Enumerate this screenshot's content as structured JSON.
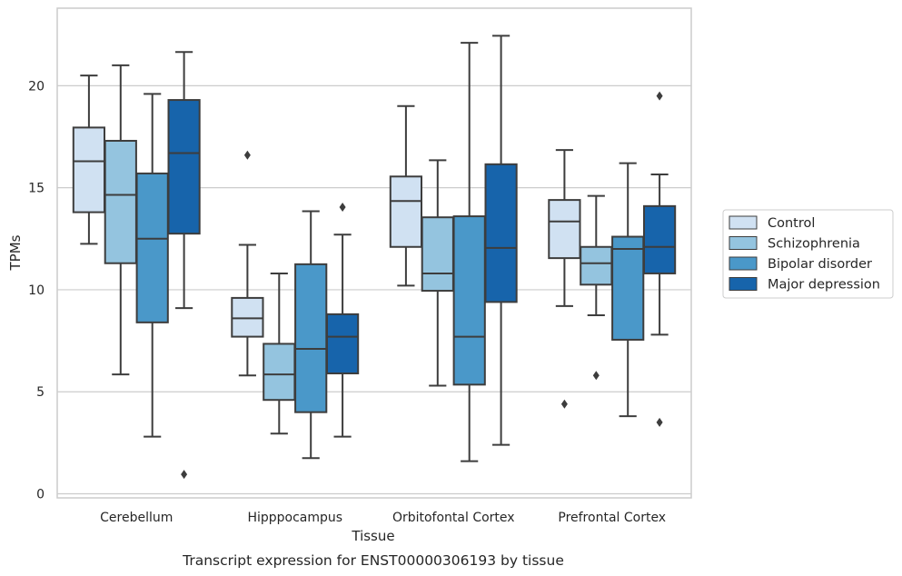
{
  "chart_data": {
    "type": "boxplot",
    "title": "",
    "caption": "Transcript expression for ENST00000306193 by tissue",
    "xlabel": "Tissue",
    "ylabel": "TPMs",
    "ylim": [
      -0.2,
      23.8
    ],
    "yticks": [
      0,
      5,
      10,
      15,
      20
    ],
    "grid": "horizontal",
    "legend_position": "right",
    "categories": [
      "Cerebellum",
      "Hipppocampus",
      "Orbitofontal Cortex",
      "Prefrontal Cortex"
    ],
    "series": [
      {
        "name": "Control",
        "color": "#d0e1f2",
        "boxes": [
          {
            "whisker_low": 12.25,
            "q1": 13.8,
            "median": 16.3,
            "q3": 17.95,
            "whisker_high": 20.5,
            "outliers": []
          },
          {
            "whisker_low": 5.8,
            "q1": 7.7,
            "median": 8.6,
            "q3": 9.6,
            "whisker_high": 12.2,
            "outliers": [
              16.6
            ]
          },
          {
            "whisker_low": 10.2,
            "q1": 12.1,
            "median": 14.35,
            "q3": 15.55,
            "whisker_high": 19.0,
            "outliers": []
          },
          {
            "whisker_low": 9.2,
            "q1": 11.55,
            "median": 13.35,
            "q3": 14.4,
            "whisker_high": 16.85,
            "outliers": [
              4.4
            ]
          }
        ]
      },
      {
        "name": "Schizophrenia",
        "color": "#94c4df",
        "boxes": [
          {
            "whisker_low": 5.85,
            "q1": 11.3,
            "median": 14.65,
            "q3": 17.3,
            "whisker_high": 21.0,
            "outliers": []
          },
          {
            "whisker_low": 2.95,
            "q1": 4.6,
            "median": 5.85,
            "q3": 7.35,
            "whisker_high": 10.8,
            "outliers": []
          },
          {
            "whisker_low": 5.3,
            "q1": 9.95,
            "median": 10.8,
            "q3": 13.55,
            "whisker_high": 16.35,
            "outliers": []
          },
          {
            "whisker_low": 8.75,
            "q1": 10.25,
            "median": 11.3,
            "q3": 12.1,
            "whisker_high": 14.6,
            "outliers": [
              5.8
            ]
          }
        ]
      },
      {
        "name": "Bipolar disorder",
        "color": "#4a98c9",
        "boxes": [
          {
            "whisker_low": 2.8,
            "q1": 8.4,
            "median": 12.5,
            "q3": 15.7,
            "whisker_high": 19.6,
            "outliers": []
          },
          {
            "whisker_low": 1.75,
            "q1": 4.0,
            "median": 7.1,
            "q3": 11.25,
            "whisker_high": 13.85,
            "outliers": []
          },
          {
            "whisker_low": 1.6,
            "q1": 5.35,
            "median": 7.7,
            "q3": 13.6,
            "whisker_high": 22.1,
            "outliers": []
          },
          {
            "whisker_low": 3.8,
            "q1": 7.55,
            "median": 12.0,
            "q3": 12.6,
            "whisker_high": 16.2,
            "outliers": []
          }
        ]
      },
      {
        "name": "Major depression",
        "color": "#1764ab",
        "boxes": [
          {
            "whisker_low": 9.1,
            "q1": 12.75,
            "median": 16.7,
            "q3": 19.3,
            "whisker_high": 21.65,
            "outliers": [
              0.95
            ]
          },
          {
            "whisker_low": 2.8,
            "q1": 5.9,
            "median": 7.7,
            "q3": 8.8,
            "whisker_high": 12.7,
            "outliers": [
              14.05
            ]
          },
          {
            "whisker_low": 2.4,
            "q1": 9.4,
            "median": 12.05,
            "q3": 16.15,
            "whisker_high": 22.45,
            "outliers": []
          },
          {
            "whisker_low": 7.8,
            "q1": 10.8,
            "median": 12.1,
            "q3": 14.1,
            "whisker_high": 15.65,
            "outliers": [
              3.5,
              19.5
            ]
          }
        ]
      }
    ]
  }
}
